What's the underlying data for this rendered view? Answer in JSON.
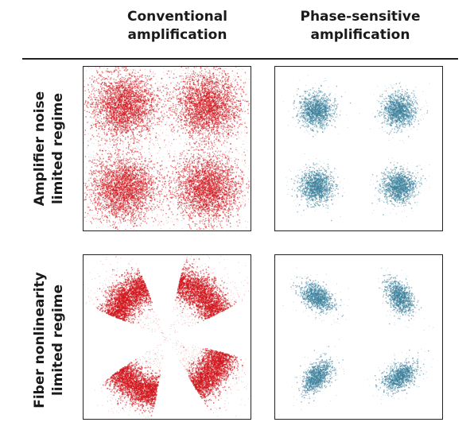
{
  "columns": {
    "conventional": {
      "line1": "Conventional",
      "line2": "amplification"
    },
    "phase_sensitive": {
      "line1": "Phase-sensitive",
      "line2": "amplification"
    }
  },
  "rows": {
    "amplifier_noise": {
      "line1": "Amplifier noise",
      "line2": "limited regime"
    },
    "fiber_nonlinearity": {
      "line1": "Fiber nonlinearity",
      "line2": "limited regime"
    }
  },
  "colors": {
    "conventional_points": "#d0161c",
    "phase_sensitive_points": "#3a7f9a",
    "frame": "#222222"
  }
}
